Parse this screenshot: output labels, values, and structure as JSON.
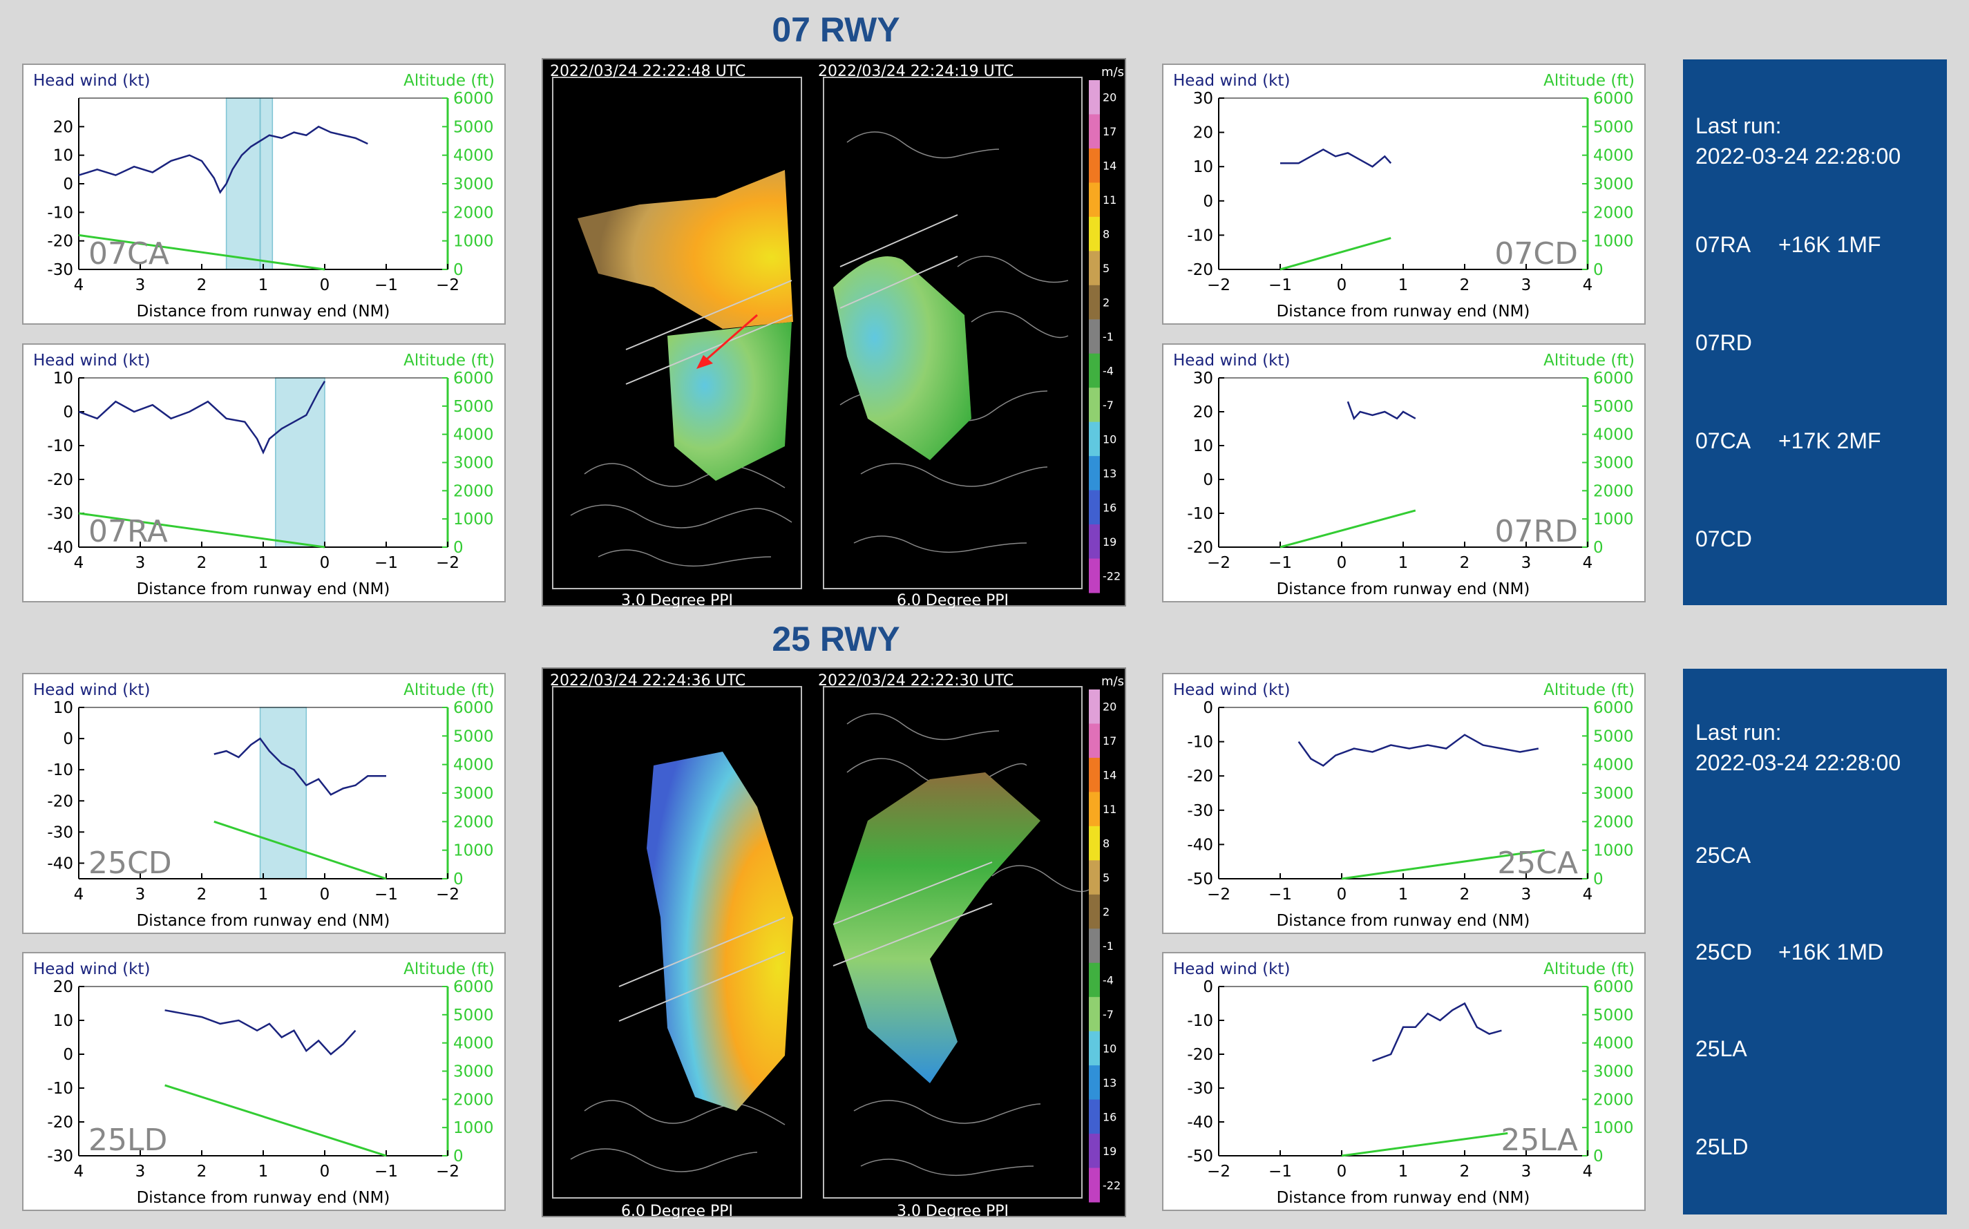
{
  "sections": [
    {
      "title": "07 RWY",
      "radar": {
        "left": {
          "stamp": "2022/03/24   22:22:48 UTC",
          "label": "3.0 Degree PPI"
        },
        "right": {
          "stamp": "2022/03/24   22:24:19 UTC",
          "label": "6.0 Degree PPI"
        }
      },
      "info": {
        "last_run_label": "Last run:",
        "last_run_time": "2022-03-24 22:28:00",
        "items": [
          {
            "code": "07RA",
            "alert": "+16K 1MF"
          },
          {
            "code": "07RD",
            "alert": ""
          },
          {
            "code": "07CA",
            "alert": "+17K 2MF"
          },
          {
            "code": "07CD",
            "alert": ""
          }
        ]
      }
    },
    {
      "title": "25 RWY",
      "radar": {
        "left": {
          "stamp": "2022/03/24   22:24:36 UTC",
          "label": "6.0 Degree PPI"
        },
        "right": {
          "stamp": "2022/03/24   22:22:30 UTC",
          "label": "3.0 Degree PPI"
        }
      },
      "info": {
        "last_run_label": "Last run:",
        "last_run_time": "2022-03-24 22:28:00",
        "items": [
          {
            "code": "25CA",
            "alert": ""
          },
          {
            "code": "25CD",
            "alert": "+16K 1MD"
          },
          {
            "code": "25LA",
            "alert": ""
          },
          {
            "code": "25LD",
            "alert": ""
          }
        ]
      }
    }
  ],
  "axis_text": {
    "ylabel_left": "Head wind (kt)",
    "ylabel_right": "Altitude (ft)",
    "xlabel": "Distance from runway end (NM)",
    "velocity_unit": "m/s"
  },
  "colors": {
    "wind_line": "#1a237e",
    "altitude_line": "#33cc33",
    "shade": "#bfe4ec",
    "title": "#1f4e8c",
    "info_bg": "#0e4a8a"
  },
  "colorbar": [
    {
      "label": "20",
      "color": "#e0a0d8"
    },
    {
      "label": "17",
      "color": "#e070b8"
    },
    {
      "label": "14",
      "color": "#f07820"
    },
    {
      "label": "11",
      "color": "#f8a820"
    },
    {
      "label": "8",
      "color": "#f0e020"
    },
    {
      "label": "5",
      "color": "#c8a050"
    },
    {
      "label": "2",
      "color": "#8c6e3c"
    },
    {
      "label": "-1",
      "color": "#808080"
    },
    {
      "label": "-4",
      "color": "#40b040"
    },
    {
      "label": "-7",
      "color": "#90d070"
    },
    {
      "label": "10",
      "color": "#60c8e0"
    },
    {
      "label": "13",
      "color": "#3090d8"
    },
    {
      "label": "16",
      "color": "#4060d0"
    },
    {
      "label": "19",
      "color": "#8040c0"
    },
    {
      "label": "-22",
      "color": "#c040c0"
    }
  ],
  "chart_data": [
    {
      "type": "line",
      "panel": "07CA",
      "xlim": [
        4,
        -2
      ],
      "ylim": [
        -30,
        30
      ],
      "yticks": [
        20,
        10,
        0,
        -10,
        -20,
        -30
      ],
      "y2lim": [
        0,
        6000
      ],
      "y2ticks": [
        0,
        1000,
        2000,
        3000,
        4000,
        5000,
        6000
      ],
      "xticks": [
        4,
        3,
        2,
        1,
        0,
        -1,
        -2
      ],
      "shade": [
        [
          1.6,
          0.85
        ]
      ],
      "lines_at": [
        1.05
      ],
      "wind": {
        "x": [
          4,
          3.7,
          3.4,
          3.1,
          2.8,
          2.5,
          2.2,
          2.0,
          1.8,
          1.7,
          1.6,
          1.5,
          1.35,
          1.2,
          1.05,
          0.9,
          0.7,
          0.5,
          0.3,
          0.1,
          -0.1,
          -0.3,
          -0.5,
          -0.7
        ],
        "y": [
          3,
          5,
          3,
          6,
          4,
          8,
          10,
          8,
          2,
          -3,
          0,
          5,
          10,
          13,
          15,
          17,
          16,
          18,
          17,
          20,
          18,
          17,
          16,
          14
        ]
      },
      "altitude": {
        "x": [
          4,
          0
        ],
        "y": [
          1200,
          0
        ]
      }
    },
    {
      "type": "line",
      "panel": "07RA",
      "xlim": [
        4,
        -2
      ],
      "ylim": [
        -40,
        10
      ],
      "yticks": [
        10,
        0,
        -10,
        -20,
        -30,
        -40
      ],
      "y2lim": [
        0,
        6000
      ],
      "y2ticks": [
        0,
        1000,
        2000,
        3000,
        4000,
        5000,
        6000
      ],
      "xticks": [
        4,
        3,
        2,
        1,
        0,
        -1,
        -2
      ],
      "shade": [
        [
          0.8,
          0
        ]
      ],
      "lines_at": [],
      "wind": {
        "x": [
          4,
          3.7,
          3.4,
          3.1,
          2.8,
          2.5,
          2.2,
          1.9,
          1.6,
          1.3,
          1.1,
          1.0,
          0.9,
          0.7,
          0.5,
          0.3,
          0.1,
          0.0
        ],
        "y": [
          0,
          -2,
          3,
          0,
          2,
          -2,
          0,
          3,
          -2,
          -3,
          -8,
          -12,
          -8,
          -5,
          -3,
          -1,
          6,
          9
        ]
      },
      "altitude": {
        "x": [
          4,
          0
        ],
        "y": [
          1200,
          0
        ]
      }
    },
    {
      "type": "line",
      "panel": "07CD",
      "xlim": [
        -2,
        4
      ],
      "ylim": [
        -20,
        30
      ],
      "yticks": [
        30,
        20,
        10,
        0,
        -10,
        -20
      ],
      "y2lim": [
        0,
        6000
      ],
      "y2ticks": [
        0,
        1000,
        2000,
        3000,
        4000,
        5000,
        6000
      ],
      "xticks": [
        -2,
        -1,
        0,
        1,
        2,
        3,
        4
      ],
      "shade": [],
      "lines_at": [],
      "wind": {
        "x": [
          -1,
          -0.7,
          -0.5,
          -0.3,
          -0.1,
          0.1,
          0.3,
          0.5,
          0.7,
          0.8
        ],
        "y": [
          11,
          11,
          13,
          15,
          13,
          14,
          12,
          10,
          13,
          11
        ]
      },
      "altitude": {
        "x": [
          -1,
          0.8
        ],
        "y": [
          0,
          1100
        ]
      }
    },
    {
      "type": "line",
      "panel": "07RD",
      "xlim": [
        -2,
        4
      ],
      "ylim": [
        -20,
        30
      ],
      "yticks": [
        30,
        20,
        10,
        0,
        -10,
        -20
      ],
      "y2lim": [
        0,
        6000
      ],
      "y2ticks": [
        0,
        1000,
        2000,
        3000,
        4000,
        5000,
        6000
      ],
      "xticks": [
        -2,
        -1,
        0,
        1,
        2,
        3,
        4
      ],
      "shade": [],
      "lines_at": [],
      "wind": {
        "x": [
          0.1,
          0.2,
          0.3,
          0.5,
          0.7,
          0.9,
          1.0,
          1.2
        ],
        "y": [
          23,
          18,
          20,
          19,
          20,
          18,
          20,
          18
        ]
      },
      "altitude": {
        "x": [
          -1,
          1.2
        ],
        "y": [
          0,
          1300
        ]
      }
    },
    {
      "type": "line",
      "panel": "25CD",
      "xlim": [
        4,
        -2
      ],
      "ylim": [
        -45,
        10
      ],
      "yticks": [
        10,
        0,
        -10,
        -20,
        -30,
        -40
      ],
      "y2lim": [
        0,
        6000
      ],
      "y2ticks": [
        0,
        1000,
        2000,
        3000,
        4000,
        5000,
        6000
      ],
      "xticks": [
        4,
        3,
        2,
        1,
        0,
        -1,
        -2
      ],
      "shade": [
        [
          1.05,
          0.3
        ]
      ],
      "lines_at": [],
      "wind": {
        "x": [
          1.8,
          1.6,
          1.4,
          1.2,
          1.05,
          0.9,
          0.7,
          0.5,
          0.3,
          0.1,
          -0.1,
          -0.3,
          -0.5,
          -0.7,
          -1.0
        ],
        "y": [
          -5,
          -4,
          -6,
          -2,
          0,
          -4,
          -8,
          -10,
          -15,
          -13,
          -18,
          -16,
          -15,
          -12,
          -12
        ]
      },
      "altitude": {
        "x": [
          1.8,
          -1
        ],
        "y": [
          2000,
          0
        ]
      }
    },
    {
      "type": "line",
      "panel": "25LD",
      "xlim": [
        4,
        -2
      ],
      "ylim": [
        -30,
        20
      ],
      "yticks": [
        20,
        10,
        0,
        -10,
        -20,
        -30
      ],
      "y2lim": [
        0,
        6000
      ],
      "y2ticks": [
        0,
        1000,
        2000,
        3000,
        4000,
        5000,
        6000
      ],
      "xticks": [
        4,
        3,
        2,
        1,
        0,
        -1,
        -2
      ],
      "shade": [],
      "lines_at": [],
      "wind": {
        "x": [
          2.6,
          2.3,
          2.0,
          1.7,
          1.4,
          1.1,
          0.9,
          0.7,
          0.5,
          0.3,
          0.1,
          -0.1,
          -0.3,
          -0.5
        ],
        "y": [
          13,
          12,
          11,
          9,
          10,
          7,
          9,
          5,
          7,
          1,
          4,
          0,
          3,
          7
        ]
      },
      "altitude": {
        "x": [
          2.6,
          -1
        ],
        "y": [
          2500,
          0
        ]
      }
    },
    {
      "type": "line",
      "panel": "25CA",
      "xlim": [
        -2,
        4
      ],
      "ylim": [
        -50,
        0
      ],
      "yticks": [
        0,
        -10,
        -20,
        -30,
        -40,
        -50
      ],
      "y2lim": [
        0,
        6000
      ],
      "y2ticks": [
        0,
        1000,
        2000,
        3000,
        4000,
        5000,
        6000
      ],
      "xticks": [
        -2,
        -1,
        0,
        1,
        2,
        3,
        4
      ],
      "shade": [],
      "lines_at": [],
      "wind": {
        "x": [
          -0.7,
          -0.5,
          -0.3,
          -0.1,
          0.2,
          0.5,
          0.8,
          1.1,
          1.4,
          1.7,
          2.0,
          2.3,
          2.6,
          2.9,
          3.2
        ],
        "y": [
          -10,
          -15,
          -17,
          -14,
          -12,
          -13,
          -11,
          -12,
          -11,
          -12,
          -8,
          -11,
          -12,
          -13,
          -12
        ]
      },
      "altitude": {
        "x": [
          0,
          3.3
        ],
        "y": [
          0,
          1000
        ]
      }
    },
    {
      "type": "line",
      "panel": "25LA",
      "xlim": [
        -2,
        4
      ],
      "ylim": [
        -50,
        0
      ],
      "yticks": [
        0,
        -10,
        -20,
        -30,
        -40,
        -50
      ],
      "y2lim": [
        0,
        6000
      ],
      "y2ticks": [
        0,
        1000,
        2000,
        3000,
        4000,
        5000,
        6000
      ],
      "xticks": [
        -2,
        -1,
        0,
        1,
        2,
        3,
        4
      ],
      "shade": [],
      "lines_at": [],
      "wind": {
        "x": [
          0.5,
          0.8,
          1.0,
          1.2,
          1.4,
          1.6,
          1.8,
          2.0,
          2.2,
          2.4,
          2.6
        ],
        "y": [
          -22,
          -20,
          -12,
          -12,
          -8,
          -10,
          -7,
          -5,
          -12,
          -14,
          -13
        ]
      },
      "altitude": {
        "x": [
          0,
          2.7
        ],
        "y": [
          0,
          800
        ]
      }
    }
  ]
}
